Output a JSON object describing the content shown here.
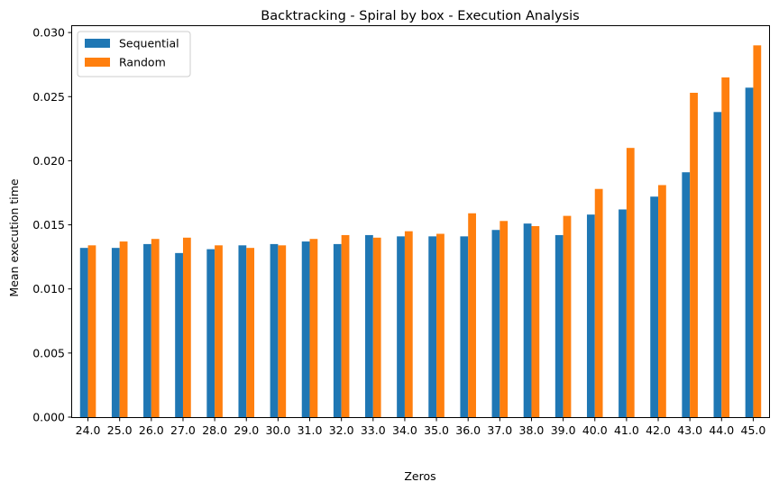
{
  "chart_data": {
    "type": "bar",
    "title": "Backtracking - Spiral by box - Execution Analysis",
    "xlabel": "Zeros",
    "ylabel": "Mean execution time",
    "categories": [
      "24.0",
      "25.0",
      "26.0",
      "27.0",
      "28.0",
      "29.0",
      "30.0",
      "31.0",
      "32.0",
      "33.0",
      "34.0",
      "35.0",
      "36.0",
      "37.0",
      "38.0",
      "39.0",
      "40.0",
      "41.0",
      "42.0",
      "43.0",
      "44.0",
      "45.0"
    ],
    "series": [
      {
        "name": "Sequential",
        "color": "#1f77b4",
        "values": [
          0.0132,
          0.0132,
          0.0135,
          0.0128,
          0.0131,
          0.0134,
          0.0135,
          0.0137,
          0.0135,
          0.0142,
          0.0141,
          0.0141,
          0.0141,
          0.0146,
          0.0151,
          0.0142,
          0.0158,
          0.0162,
          0.0172,
          0.0191,
          0.0238,
          0.0257
        ]
      },
      {
        "name": "Random",
        "color": "#ff7f0e",
        "values": [
          0.0134,
          0.0137,
          0.0139,
          0.014,
          0.0134,
          0.0132,
          0.0134,
          0.0139,
          0.0142,
          0.014,
          0.0145,
          0.0143,
          0.0159,
          0.0153,
          0.0149,
          0.0157,
          0.0178,
          0.021,
          0.0181,
          0.0253,
          0.0265,
          0.029
        ]
      }
    ],
    "ylim": [
      0,
      0.0305
    ],
    "yticks": [
      "0.000",
      "0.005",
      "0.010",
      "0.015",
      "0.020",
      "0.025",
      "0.030"
    ],
    "legend": "top-left",
    "grid": false
  }
}
